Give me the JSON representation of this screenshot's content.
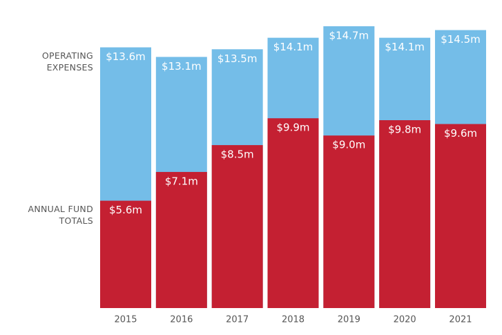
{
  "chart_data": {
    "type": "bar",
    "categories": [
      "2015",
      "2016",
      "2017",
      "2018",
      "2019",
      "2020",
      "2021"
    ],
    "series": [
      {
        "name": "OPERATING EXPENSES",
        "color": "#74bde8",
        "values": [
          13.6,
          13.1,
          13.5,
          14.1,
          14.7,
          14.1,
          14.5
        ],
        "value_labels": [
          "$13.6m",
          "$13.1m",
          "$13.5m",
          "$14.1m",
          "$14.7m",
          "$14.1m",
          "$14.5m"
        ]
      },
      {
        "name": "ANNUAL FUND TOTALS",
        "color": "#c42032",
        "values": [
          5.6,
          7.1,
          8.5,
          9.9,
          9.0,
          9.8,
          9.6
        ],
        "value_labels": [
          "$5.6m",
          "$7.1m",
          "$8.5m",
          "$9.9m",
          "$9.0m",
          "$9.8m",
          "$9.6m"
        ]
      }
    ]
  }
}
